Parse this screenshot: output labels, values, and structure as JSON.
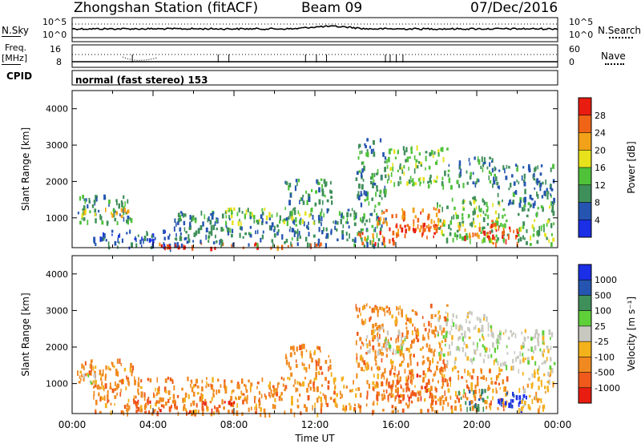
{
  "header": {
    "station": "Zhongshan Station (fitACF)",
    "beam": "Beam 09",
    "date": "07/Dec/2016"
  },
  "panel_sky": {
    "left_label": "N.Sky",
    "left_ticks": [
      "10^5",
      "10^0"
    ],
    "right_ticks": [
      "10^5",
      "10^0"
    ],
    "right_label": "N.Search"
  },
  "panel_freq": {
    "left_label_line1": "Freq.",
    "left_label_line2": "[MHz]",
    "left_ticks": [
      "16",
      "8"
    ],
    "right_ticks": [
      "60",
      "0"
    ],
    "right_label": "Nave"
  },
  "cpid": {
    "label": "CPID",
    "text": "normal (fast stereo) 153"
  },
  "colors": {
    "power": [
      "#1a2fe6",
      "#2555b0",
      "#3f8f5a",
      "#4fc23a",
      "#e7e21c",
      "#f2a218",
      "#f06418",
      "#e81c10"
    ],
    "velocity": [
      "#e81c10",
      "#ef5a1c",
      "#f08a20",
      "#f3b21c",
      "#c8c8c0",
      "#5fcf3a",
      "#3f8f5a",
      "#2555b0",
      "#1a2fe6"
    ]
  },
  "chart_data": [
    {
      "type": "heatmap",
      "name": "power",
      "title": "",
      "xlabel": "",
      "ylabel": "Slant Range [km]",
      "xlim": [
        "00:00",
        "24:00"
      ],
      "ylim": [
        180,
        4500
      ],
      "y_ticks": [
        1000,
        2000,
        3000,
        4000
      ],
      "colorbar_label": "Power [dB]",
      "colorbar_ticks": [
        4,
        8,
        12,
        16,
        20,
        24,
        28
      ],
      "colorbar_range": [
        0,
        30
      ],
      "echo_regions": [
        {
          "t0": 0.2,
          "t1": 3.0,
          "r0": 900,
          "r1": 1650,
          "v": 9
        },
        {
          "t0": 0.3,
          "t1": 2.8,
          "r0": 1050,
          "r1": 1300,
          "v": 17
        },
        {
          "t0": 1.0,
          "t1": 5.5,
          "r0": 200,
          "r1": 700,
          "v": 6
        },
        {
          "t0": 4.0,
          "t1": 12.5,
          "r0": 200,
          "r1": 330,
          "v": 26
        },
        {
          "t0": 5.0,
          "t1": 12.0,
          "r0": 300,
          "r1": 1200,
          "v": 8
        },
        {
          "t0": 7.5,
          "t1": 12.0,
          "r0": 900,
          "r1": 1300,
          "v": 14
        },
        {
          "t0": 10.5,
          "t1": 12.8,
          "r0": 1400,
          "r1": 2100,
          "v": 9
        },
        {
          "t0": 12.0,
          "t1": 14.0,
          "r0": 300,
          "r1": 1300,
          "v": 8
        },
        {
          "t0": 14.0,
          "t1": 15.5,
          "r0": 250,
          "r1": 3200,
          "v": 9
        },
        {
          "t0": 14.0,
          "t1": 16.0,
          "r0": 300,
          "r1": 650,
          "v": 24
        },
        {
          "t0": 15.0,
          "t1": 18.5,
          "r0": 700,
          "r1": 1300,
          "v": 23
        },
        {
          "t0": 16.0,
          "t1": 18.0,
          "r0": 500,
          "r1": 900,
          "v": 27
        },
        {
          "t0": 15.5,
          "t1": 18.5,
          "r0": 1900,
          "r1": 3000,
          "v": 13
        },
        {
          "t0": 18.0,
          "t1": 21.5,
          "r0": 400,
          "r1": 1600,
          "v": 12
        },
        {
          "t0": 19.0,
          "t1": 20.5,
          "r0": 500,
          "r1": 800,
          "v": 25
        },
        {
          "t0": 18.5,
          "t1": 21.0,
          "r0": 1900,
          "r1": 2700,
          "v": 9
        },
        {
          "t0": 20.5,
          "t1": 22.0,
          "r0": 300,
          "r1": 1000,
          "v": 26
        },
        {
          "t0": 21.0,
          "t1": 23.8,
          "r0": 1400,
          "r1": 2500,
          "v": 8
        },
        {
          "t0": 22.0,
          "t1": 23.8,
          "r0": 300,
          "r1": 1400,
          "v": 12
        }
      ]
    },
    {
      "type": "heatmap",
      "name": "velocity",
      "title": "",
      "xlabel": "Time UT",
      "ylabel": "Slant Range [km]",
      "xlim": [
        "00:00",
        "24:00"
      ],
      "x_ticks": [
        "00:00",
        "04:00",
        "08:00",
        "12:00",
        "16:00",
        "20:00",
        "00:00"
      ],
      "ylim": [
        180,
        4500
      ],
      "y_ticks": [
        1000,
        2000,
        3000,
        4000
      ],
      "colorbar_label": "Velocity [m s⁻¹]",
      "colorbar_ticks": [
        "1000",
        "500",
        "100",
        "25",
        "-25",
        "-100",
        "-500",
        "-1000"
      ],
      "echo_regions": [
        {
          "t0": 0.2,
          "t1": 3.0,
          "r0": 900,
          "r1": 1700,
          "c": 2
        },
        {
          "t0": 0.3,
          "t1": 1.5,
          "r0": 1050,
          "r1": 1300,
          "c": 4
        },
        {
          "t0": 1.0,
          "t1": 12.5,
          "r0": 200,
          "r1": 1200,
          "c": 2
        },
        {
          "t0": 3.0,
          "t1": 8.0,
          "r0": 250,
          "r1": 600,
          "c": 1
        },
        {
          "t0": 10.5,
          "t1": 12.8,
          "r0": 1300,
          "r1": 2100,
          "c": 2
        },
        {
          "t0": 12.5,
          "t1": 14.0,
          "r0": 300,
          "r1": 1200,
          "c": 2
        },
        {
          "t0": 14.0,
          "t1": 18.5,
          "r0": 250,
          "r1": 3200,
          "c": 2
        },
        {
          "t0": 15.0,
          "t1": 18.0,
          "r0": 600,
          "r1": 1400,
          "c": 1
        },
        {
          "t0": 14.5,
          "t1": 16.5,
          "r0": 1900,
          "r1": 2600,
          "c": 4
        },
        {
          "t0": 18.0,
          "t1": 21.0,
          "r0": 1600,
          "r1": 3000,
          "c": 4
        },
        {
          "t0": 18.5,
          "t1": 21.5,
          "r0": 300,
          "r1": 1500,
          "c": 2
        },
        {
          "t0": 19.0,
          "t1": 20.5,
          "r0": 350,
          "r1": 900,
          "c": 6
        },
        {
          "t0": 21.0,
          "t1": 23.8,
          "r0": 1400,
          "r1": 2500,
          "c": 4
        },
        {
          "t0": 21.0,
          "t1": 22.5,
          "r0": 300,
          "r1": 800,
          "c": 8
        },
        {
          "t0": 22.0,
          "t1": 23.8,
          "r0": 300,
          "r1": 1400,
          "c": 3
        }
      ]
    }
  ]
}
